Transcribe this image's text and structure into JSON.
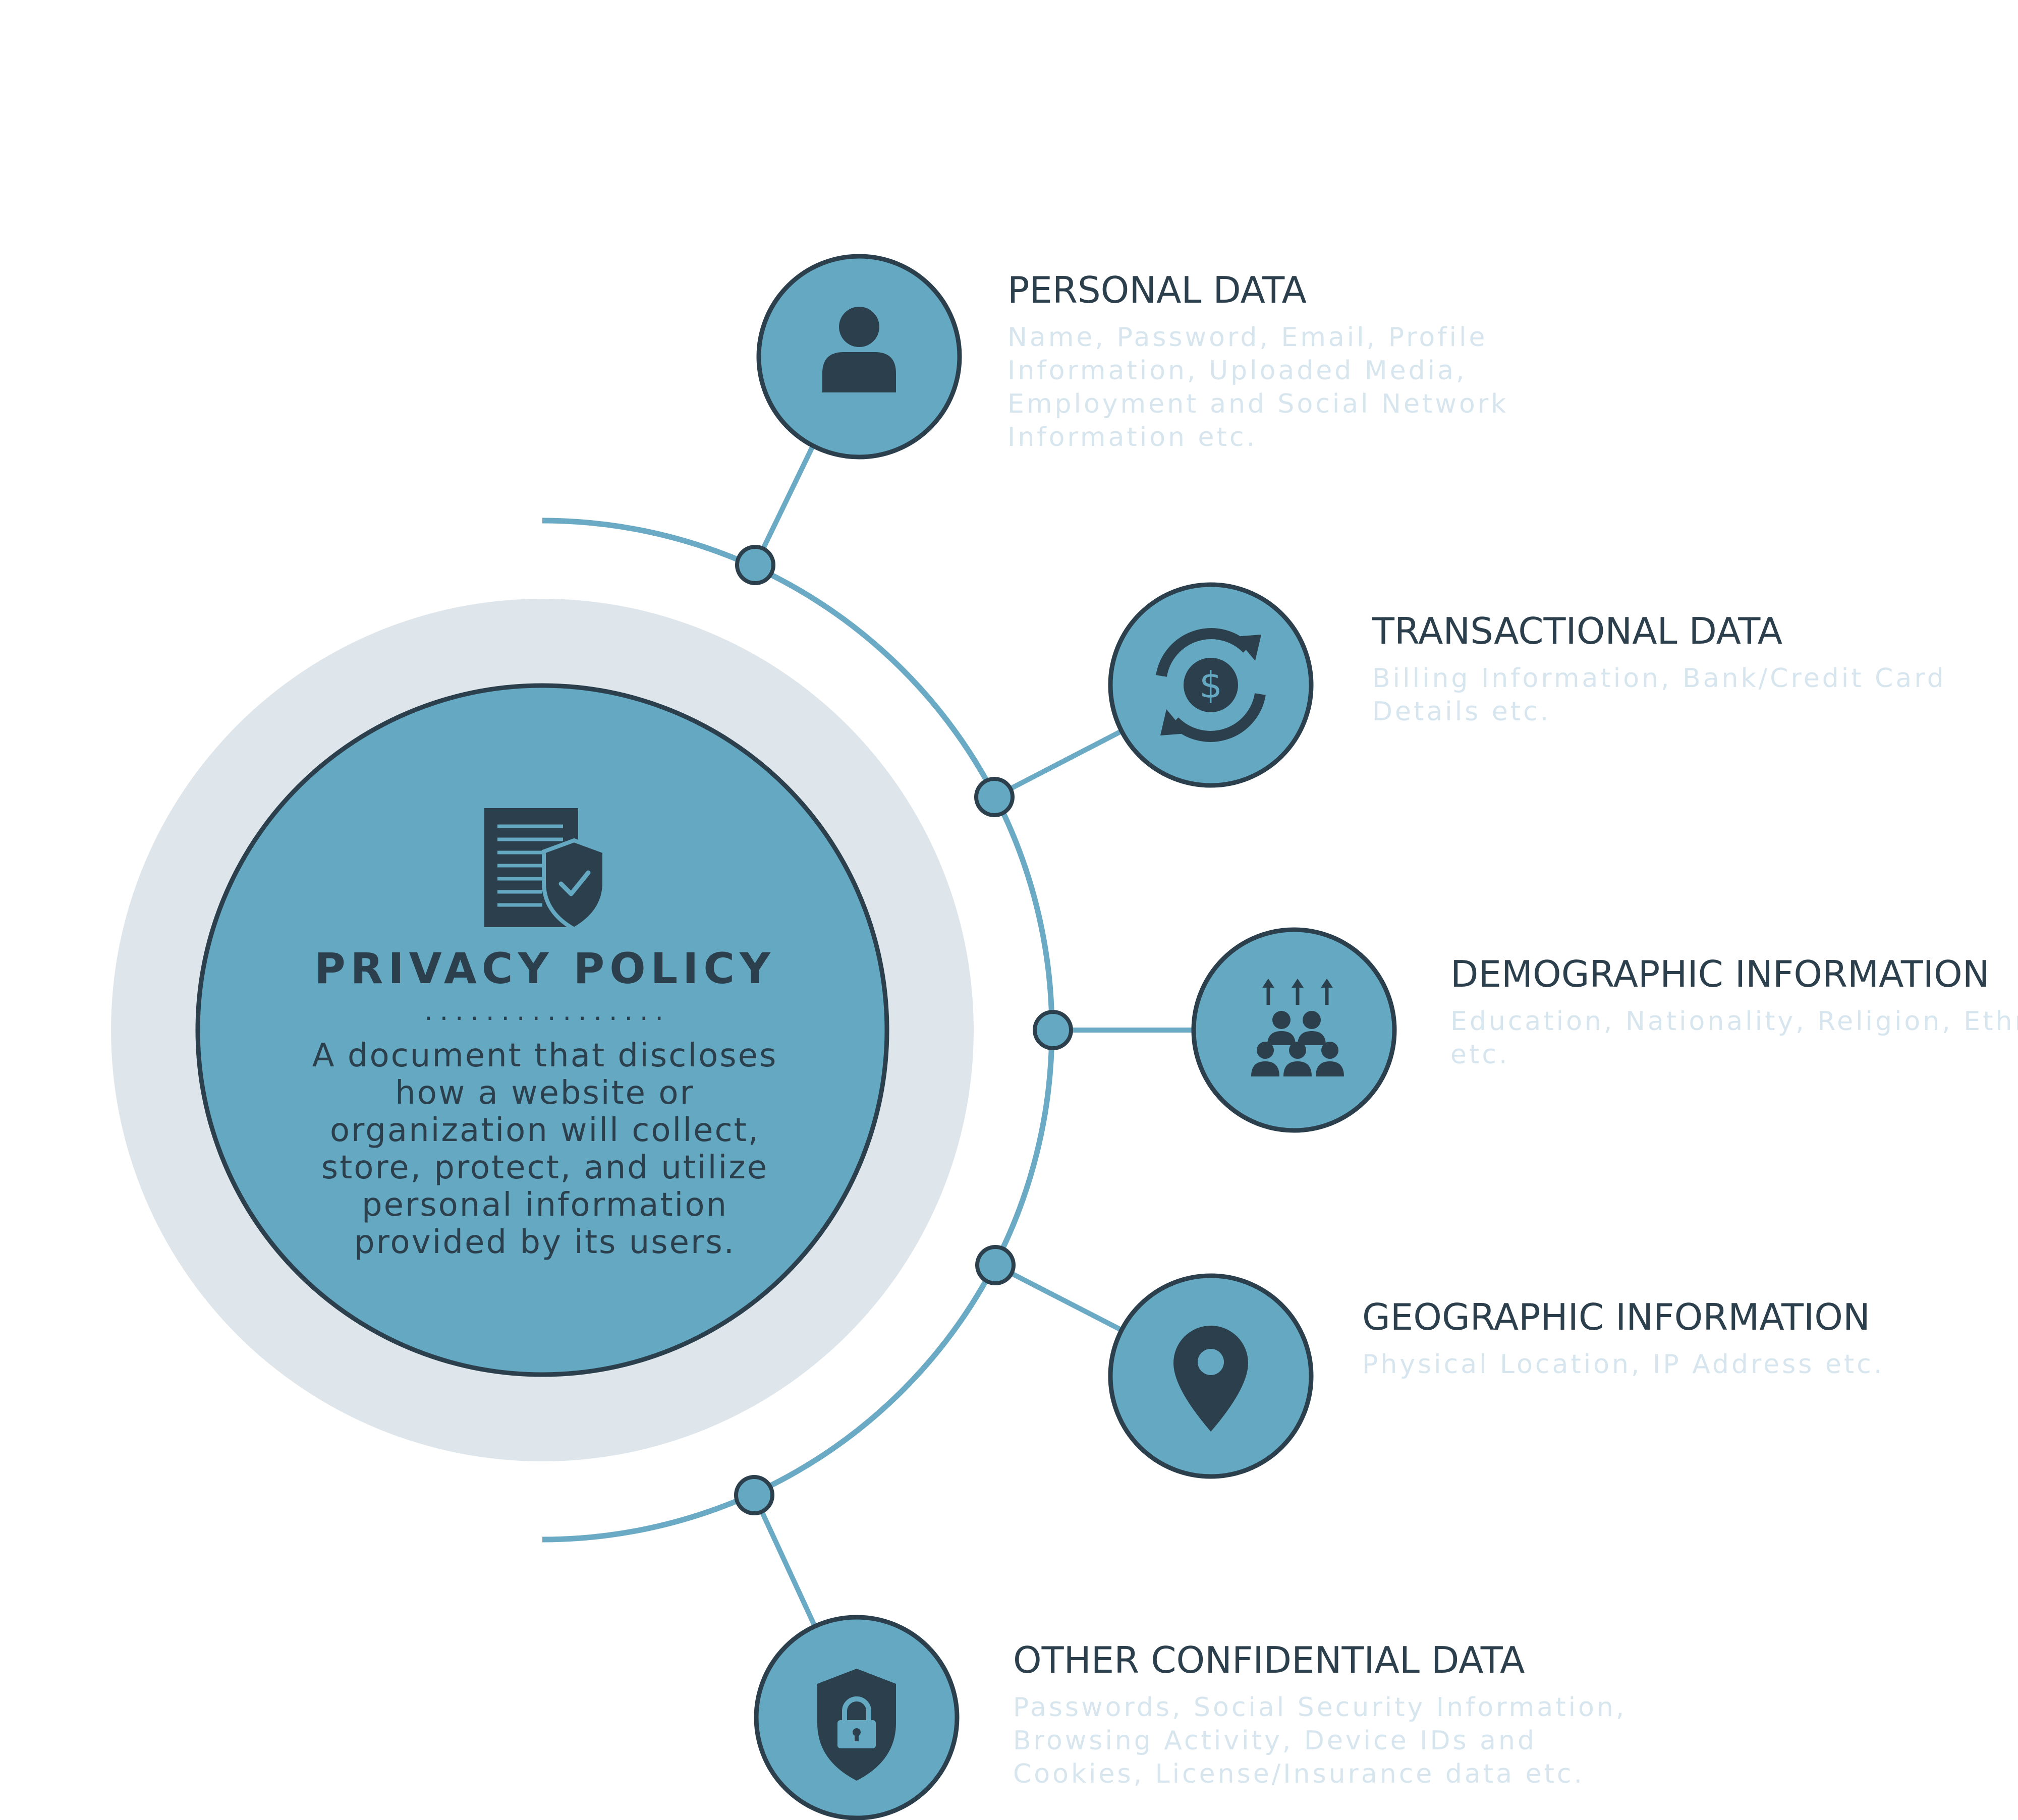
{
  "center": {
    "title": "PRIVACY POLICY",
    "divider": "................",
    "description": "A document that discloses how a website or organization will collect, store, protect, and utilize personal information provided by its users.",
    "icon": "document-shield-icon"
  },
  "items": [
    {
      "title": "PERSONAL DATA",
      "description": "Name, Password, Email, Profile Information, Uploaded Media, Employment and Social Network Information etc.",
      "icon": "user-icon"
    },
    {
      "title": "TRANSACTIONAL DATA",
      "description": "Billing Information, Bank/Credit Card Details etc.",
      "icon": "dollar-cycle-icon"
    },
    {
      "title": "DEMOGRAPHIC INFORMATION",
      "description": "Education, Nationality, Religion, Ethnicity etc.",
      "icon": "people-group-icon"
    },
    {
      "title": "GEOGRAPHIC INFORMATION",
      "description": "Physical Location, IP Address etc.",
      "icon": "location-pin-icon"
    },
    {
      "title": "OTHER CONFIDENTIAL DATA",
      "description": "Passwords, Social Security Information, Browsing Activity, Device IDs and Cookies, License/Insurance data etc.",
      "icon": "shield-lock-icon"
    }
  ],
  "colors": {
    "primary": "#64a8c2",
    "dark": "#2b3f4c",
    "halo": "#dfe6eb",
    "arc": "#6aaac4",
    "muted_text": "#d7e6ee",
    "background": "#ffffff"
  }
}
